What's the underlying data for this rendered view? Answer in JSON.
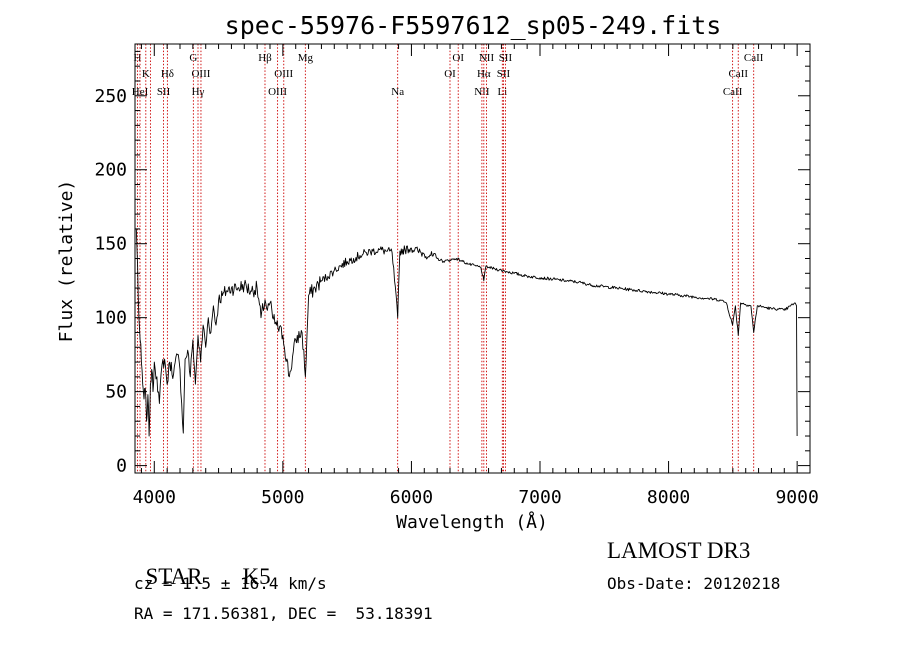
{
  "chart_data": {
    "type": "line",
    "title": "spec-55976-F5597612_sp05-249.fits",
    "xlabel": "Wavelength (Å)",
    "ylabel": "Flux (relative)",
    "xlim": [
      3850,
      9100
    ],
    "ylim": [
      -5,
      285
    ],
    "xticks": [
      4000,
      5000,
      6000,
      7000,
      8000,
      9000
    ],
    "yticks": [
      0,
      50,
      100,
      150,
      200,
      250
    ],
    "line_color": "#000000",
    "marker_color": "#cc0000",
    "series": [
      {
        "name": "flux",
        "x": [
          3860,
          3870,
          3880,
          3890,
          3900,
          3910,
          3920,
          3930,
          3940,
          3950,
          3960,
          3970,
          3980,
          3990,
          4000,
          4020,
          4040,
          4060,
          4080,
          4100,
          4120,
          4150,
          4180,
          4200,
          4226,
          4240,
          4260,
          4280,
          4300,
          4320,
          4340,
          4360,
          4380,
          4400,
          4420,
          4440,
          4460,
          4480,
          4500,
          4530,
          4560,
          4600,
          4650,
          4700,
          4750,
          4800,
          4830,
          4861,
          4880,
          4900,
          4920,
          4950,
          5000,
          5050,
          5100,
          5150,
          5175,
          5200,
          5250,
          5300,
          5350,
          5400,
          5450,
          5500,
          5550,
          5600,
          5650,
          5700,
          5750,
          5800,
          5850,
          5893,
          5910,
          5950,
          6000,
          6050,
          6100,
          6150,
          6200,
          6250,
          6300,
          6350,
          6400,
          6450,
          6500,
          6540,
          6563,
          6580,
          6600,
          6650,
          6700,
          6750,
          6800,
          6900,
          7000,
          7100,
          7200,
          7300,
          7400,
          7500,
          7600,
          7700,
          7800,
          7900,
          8000,
          8100,
          8200,
          8300,
          8400,
          8450,
          8498,
          8520,
          8542,
          8560,
          8600,
          8640,
          8662,
          8690,
          8750,
          8800,
          8850,
          8900,
          8950,
          8980,
          8995,
          9000
        ],
        "y": [
          160,
          135,
          100,
          85,
          70,
          55,
          45,
          52,
          30,
          48,
          20,
          55,
          65,
          50,
          70,
          60,
          42,
          68,
          72,
          55,
          70,
          62,
          75,
          65,
          22,
          72,
          78,
          60,
          85,
          55,
          88,
          70,
          95,
          80,
          100,
          90,
          108,
          95,
          112,
          115,
          118,
          120,
          120,
          122,
          118,
          120,
          100,
          112,
          105,
          110,
          100,
          95,
          88,
          60,
          85,
          90,
          60,
          115,
          120,
          125,
          128,
          132,
          135,
          138,
          140,
          142,
          144,
          145,
          146,
          145,
          144,
          100,
          145,
          146,
          147,
          145,
          143,
          142,
          140,
          138,
          139,
          140,
          138,
          136,
          135,
          134,
          125,
          135,
          134,
          133,
          132,
          131,
          130,
          128,
          127,
          126,
          125,
          124,
          122,
          121,
          120,
          119,
          118,
          117,
          116,
          115,
          114,
          113,
          112,
          110,
          95,
          108,
          88,
          110,
          109,
          108,
          90,
          108,
          107,
          106,
          106,
          105,
          108,
          110,
          108,
          20
        ]
      }
    ],
    "lines": [
      {
        "wavelength": 3869,
        "label": "H",
        "row": 0
      },
      {
        "wavelength": 3889,
        "label": "HeI",
        "row": 2
      },
      {
        "wavelength": 3934,
        "label": "K",
        "row": 1
      },
      {
        "wavelength": 3970,
        "label": "",
        "row": 0
      },
      {
        "wavelength": 4072,
        "label": "SII",
        "row": 2
      },
      {
        "wavelength": 4102,
        "label": "Hδ",
        "row": 1
      },
      {
        "wavelength": 4304,
        "label": "G",
        "row": 0
      },
      {
        "wavelength": 4340,
        "label": "Hγ",
        "row": 2
      },
      {
        "wavelength": 4363,
        "label": "OIII",
        "row": 1
      },
      {
        "wavelength": 4861,
        "label": "Hβ",
        "row": 0
      },
      {
        "wavelength": 4959,
        "label": "OIII",
        "row": 2
      },
      {
        "wavelength": 5007,
        "label": "OIII",
        "row": 1
      },
      {
        "wavelength": 5175,
        "label": "Mg",
        "row": 0
      },
      {
        "wavelength": 5893,
        "label": "Na",
        "row": 2
      },
      {
        "wavelength": 6300,
        "label": "OI",
        "row": 1
      },
      {
        "wavelength": 6364,
        "label": "OI",
        "row": 0
      },
      {
        "wavelength": 6548,
        "label": "NII",
        "row": 2
      },
      {
        "wavelength": 6563,
        "label": "Hα",
        "row": 1
      },
      {
        "wavelength": 6584,
        "label": "NII",
        "row": 0
      },
      {
        "wavelength": 6707,
        "label": "Li",
        "row": 2
      },
      {
        "wavelength": 6716,
        "label": "SII",
        "row": 1
      },
      {
        "wavelength": 6731,
        "label": "SII",
        "row": 0
      },
      {
        "wavelength": 8498,
        "label": "CaII",
        "row": 2
      },
      {
        "wavelength": 8542,
        "label": "CaII",
        "row": 1
      },
      {
        "wavelength": 8662,
        "label": "CaII",
        "row": 0
      }
    ]
  },
  "info": {
    "class": "STAR",
    "subclass": "K5",
    "cz": "cz = 1.5 ± 16.4 km/s",
    "coords": "RA = 171.56381, DEC =  53.18391",
    "survey": "LAMOST DR3",
    "obs_date": "Obs-Date: 20120218"
  }
}
